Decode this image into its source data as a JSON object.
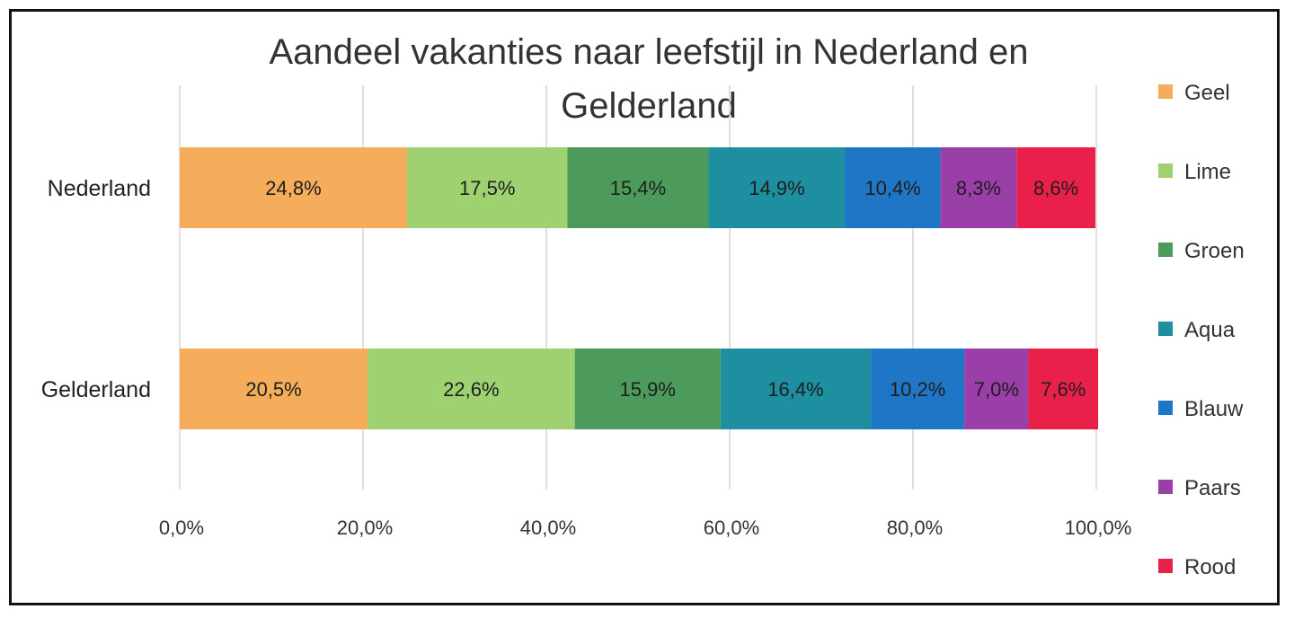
{
  "chart_data": {
    "type": "bar",
    "orientation": "horizontal",
    "stacked": true,
    "title": "Aandeel vakanties naar leefstijl in Nederland en Gelderland",
    "title_lines": [
      "Aandeel vakanties naar leefstijl in Nederland en",
      "Gelderland"
    ],
    "categories": [
      "Nederland",
      "Gelderland"
    ],
    "series": [
      {
        "name": "Geel",
        "color": "#f5ad5b",
        "values": [
          24.8,
          20.5
        ],
        "labels": [
          "24,8%",
          "20,5%"
        ]
      },
      {
        "name": "Lime",
        "color": "#9fd170",
        "values": [
          17.5,
          22.6
        ],
        "labels": [
          "17,5%",
          "22,6%"
        ]
      },
      {
        "name": "Groen",
        "color": "#4c9a5c",
        "values": [
          15.4,
          15.9
        ],
        "labels": [
          "15,4%",
          "15,9%"
        ]
      },
      {
        "name": "Aqua",
        "color": "#1e8ea1",
        "values": [
          14.9,
          16.4
        ],
        "labels": [
          "14,9%",
          "16,4%"
        ]
      },
      {
        "name": "Blauw",
        "color": "#1f76c6",
        "values": [
          10.4,
          10.2
        ],
        "labels": [
          "10,4%",
          "10,2%"
        ]
      },
      {
        "name": "Paars",
        "color": "#9a3fa8",
        "values": [
          8.3,
          7.0
        ],
        "labels": [
          "8,3%",
          "7,0%"
        ]
      },
      {
        "name": "Rood",
        "color": "#e8204a",
        "values": [
          8.6,
          7.6
        ],
        "labels": [
          "8,6%",
          "7,6%"
        ]
      }
    ],
    "xlim": [
      0,
      100
    ],
    "x_ticks": [
      0,
      20,
      40,
      60,
      80,
      100
    ],
    "x_tick_labels": [
      "0,0%",
      "20,0%",
      "40,0%",
      "60,0%",
      "80,0%",
      "100,0%"
    ],
    "grid": "vertical",
    "legend": "right"
  }
}
